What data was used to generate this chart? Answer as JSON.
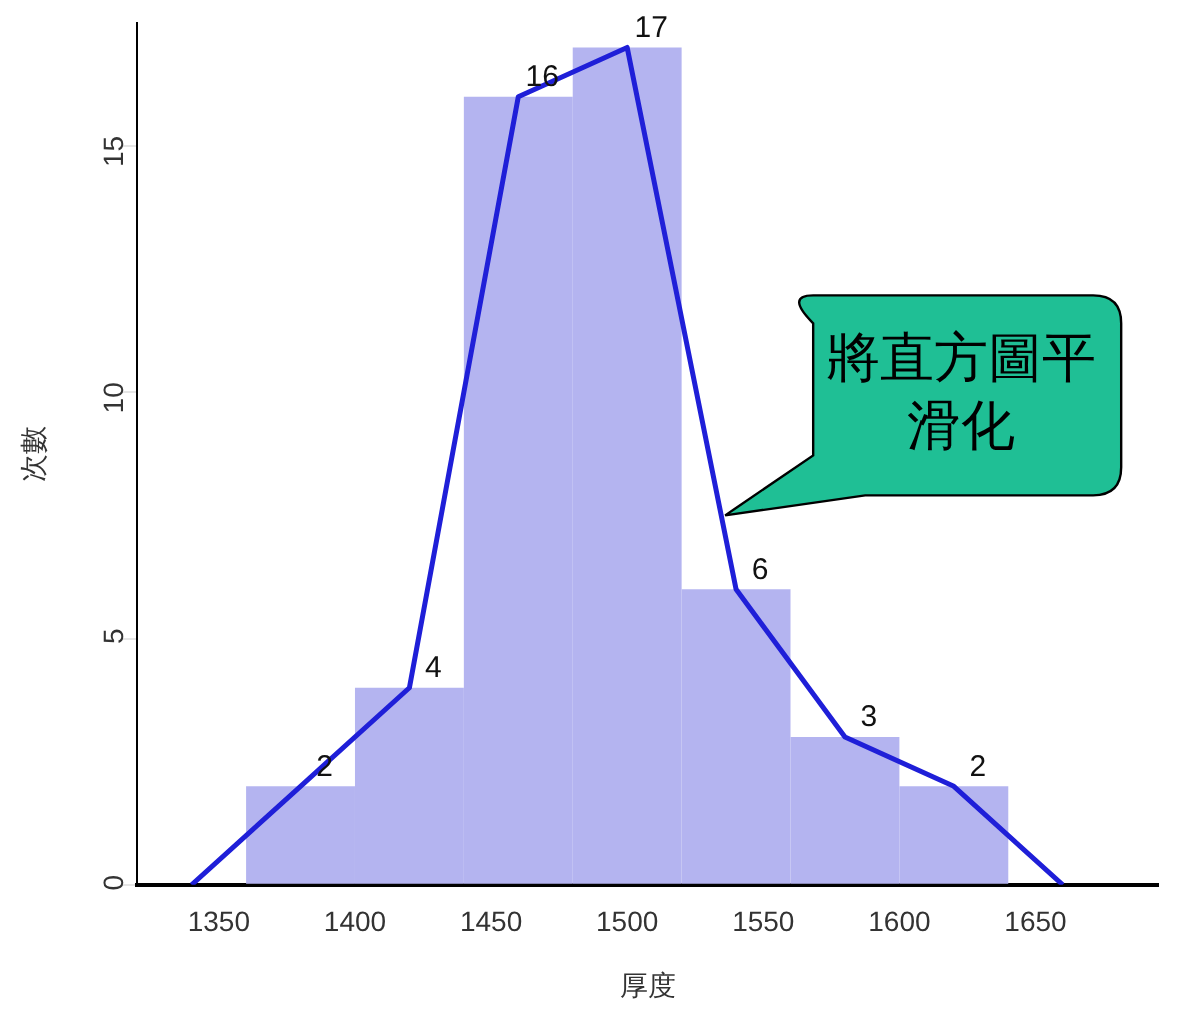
{
  "chart_data": {
    "type": "histogram",
    "xlabel": "厚度",
    "ylabel": "次數",
    "bins": [
      1360,
      1400,
      1440,
      1480,
      1520,
      1560,
      1600,
      1640
    ],
    "series": [
      {
        "type": "histogram",
        "color": "#b4b4f0",
        "values": [
          2,
          4,
          16,
          17,
          6,
          3,
          2
        ],
        "value_labels": [
          "2",
          "4",
          "16",
          "17",
          "6",
          "3",
          "2"
        ]
      },
      {
        "type": "line",
        "color": "#1f1fd8",
        "x": [
          1340,
          1380,
          1420,
          1460,
          1500,
          1540,
          1580,
          1620,
          1660
        ],
        "values": [
          0,
          2,
          4,
          16,
          17,
          6,
          3,
          2,
          0
        ]
      }
    ],
    "xlim": [
      1320,
      1695
    ],
    "xticks": [
      1350,
      1400,
      1450,
      1500,
      1550,
      1600,
      1650
    ],
    "ylim": [
      0,
      17.5
    ],
    "yticks": [
      0,
      5,
      10,
      15
    ],
    "grid": false,
    "legend": false,
    "annotations": [
      {
        "text": "將直方圖平滑化",
        "x": 1536,
        "y": 7.5
      }
    ]
  }
}
